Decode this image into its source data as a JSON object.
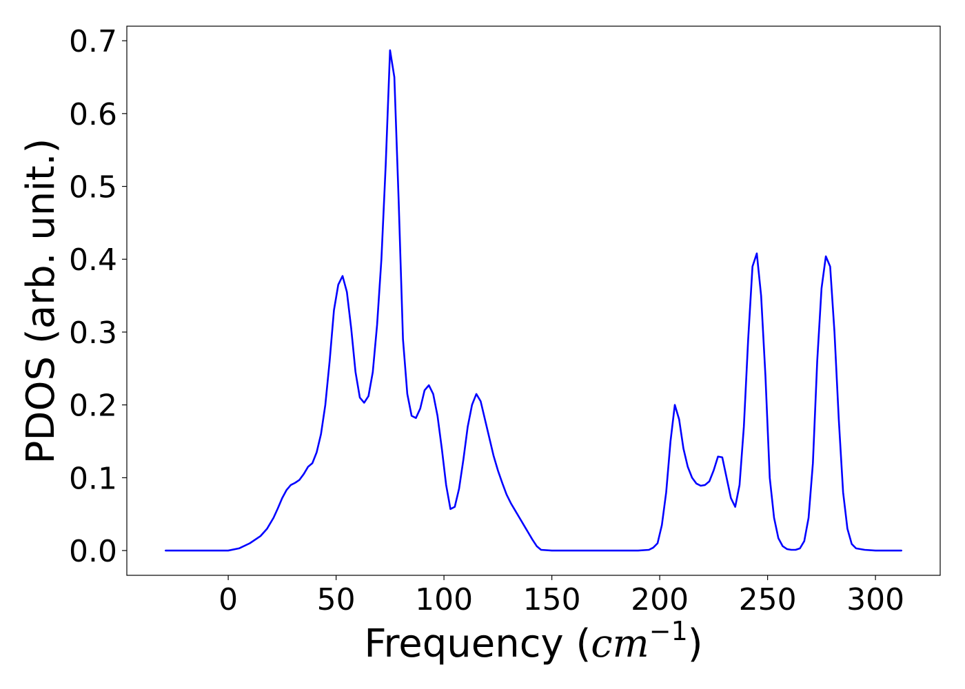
{
  "chart_data": {
    "type": "line",
    "title": "",
    "xlabel_text": "Frequency (",
    "xlabel_unit": "cm",
    "xlabel_exp": "−1",
    "xlabel_close": ")",
    "ylabel": "PDOS (arb. unit.)",
    "xlim": [
      -47,
      330
    ],
    "ylim": [
      -0.034,
      0.72
    ],
    "xticks": [
      0,
      50,
      100,
      150,
      200,
      250,
      300
    ],
    "yticks": [
      0.0,
      0.1,
      0.2,
      0.3,
      0.4,
      0.5,
      0.6,
      0.7
    ],
    "xtick_labels": [
      "0",
      "50",
      "100",
      "150",
      "200",
      "250",
      "300"
    ],
    "ytick_labels": [
      "0.0",
      "0.1",
      "0.2",
      "0.3",
      "0.4",
      "0.5",
      "0.6",
      "0.7"
    ],
    "grid": false,
    "legend": "none",
    "line_color": "#0000ff",
    "series": [
      {
        "x": [
          -29,
          -20,
          -10,
          0,
          5,
          10,
          15,
          18,
          21,
          23,
          25,
          27,
          29,
          31,
          33,
          35,
          37,
          39,
          41,
          43,
          45,
          47,
          49,
          51,
          53,
          55,
          57,
          59,
          61,
          63,
          65,
          67,
          69,
          71,
          73,
          75,
          77,
          79,
          81,
          83,
          85,
          87,
          89,
          91,
          93,
          95,
          97,
          99,
          101,
          103,
          105,
          107,
          109,
          111,
          113,
          115,
          117,
          119,
          121,
          123,
          125,
          127,
          129,
          131,
          133,
          135,
          137,
          139,
          141,
          143,
          145,
          150,
          170,
          190,
          195,
          197,
          199,
          201,
          203,
          205,
          207,
          209,
          211,
          213,
          215,
          217,
          219,
          221,
          223,
          225,
          227,
          229,
          231,
          233,
          235,
          237,
          239,
          241,
          243,
          245,
          247,
          249,
          251,
          253,
          255,
          257,
          259,
          261,
          263,
          265,
          267,
          269,
          271,
          273,
          275,
          277,
          279,
          281,
          283,
          285,
          287,
          289,
          291,
          295,
          300,
          312
        ],
        "y": [
          0.0,
          0.0,
          0.0,
          0.0,
          0.003,
          0.01,
          0.02,
          0.03,
          0.045,
          0.058,
          0.072,
          0.083,
          0.09,
          0.093,
          0.097,
          0.105,
          0.115,
          0.12,
          0.135,
          0.16,
          0.2,
          0.26,
          0.33,
          0.365,
          0.377,
          0.355,
          0.305,
          0.245,
          0.21,
          0.203,
          0.212,
          0.245,
          0.31,
          0.4,
          0.53,
          0.687,
          0.65,
          0.48,
          0.29,
          0.215,
          0.185,
          0.182,
          0.195,
          0.22,
          0.227,
          0.215,
          0.185,
          0.14,
          0.09,
          0.057,
          0.06,
          0.085,
          0.125,
          0.17,
          0.2,
          0.215,
          0.205,
          0.18,
          0.155,
          0.13,
          0.11,
          0.093,
          0.077,
          0.065,
          0.055,
          0.045,
          0.035,
          0.025,
          0.015,
          0.006,
          0.001,
          0.0,
          0.0,
          0.0,
          0.001,
          0.004,
          0.01,
          0.035,
          0.08,
          0.15,
          0.2,
          0.18,
          0.14,
          0.115,
          0.1,
          0.092,
          0.089,
          0.09,
          0.095,
          0.11,
          0.129,
          0.128,
          0.1,
          0.072,
          0.06,
          0.09,
          0.17,
          0.29,
          0.39,
          0.408,
          0.35,
          0.24,
          0.1,
          0.045,
          0.017,
          0.006,
          0.002,
          0.001,
          0.001,
          0.003,
          0.013,
          0.045,
          0.12,
          0.26,
          0.36,
          0.404,
          0.39,
          0.3,
          0.18,
          0.08,
          0.03,
          0.009,
          0.003,
          0.001,
          0.0,
          0.0
        ]
      }
    ]
  }
}
